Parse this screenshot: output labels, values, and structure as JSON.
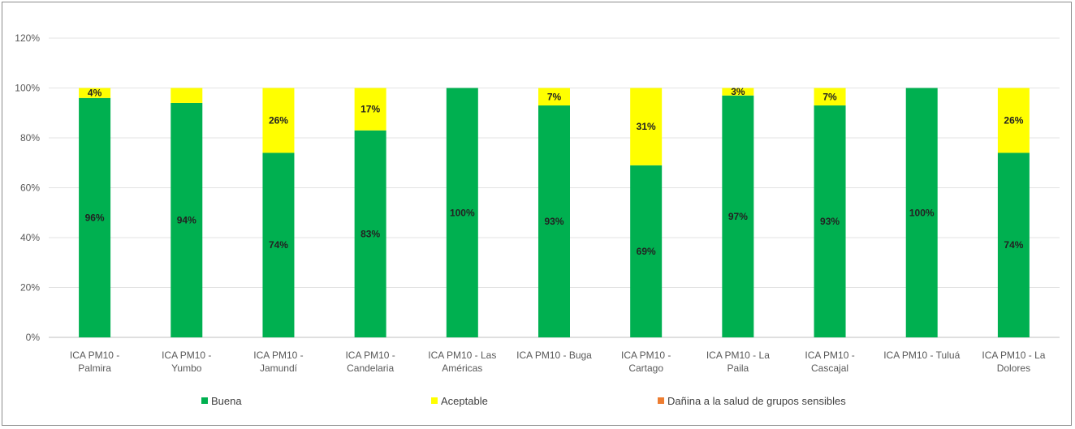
{
  "chart_data": {
    "type": "bar",
    "stacked": true,
    "categories": [
      [
        "ICA PM10 -",
        "Palmira"
      ],
      [
        "ICA PM10 -",
        "Yumbo"
      ],
      [
        "ICA PM10 -",
        "Jamundí"
      ],
      [
        "ICA PM10 -",
        "Candelaria"
      ],
      [
        "ICA PM10 - Las",
        "Américas"
      ],
      [
        "ICA PM10 - Buga"
      ],
      [
        "ICA PM10 -",
        "Cartago"
      ],
      [
        "ICA PM10 - La",
        "Paila"
      ],
      [
        "ICA PM10 -",
        "Cascajal"
      ],
      [
        "ICA PM10 - Tuluá"
      ],
      [
        "ICA PM10 - La",
        "Dolores"
      ]
    ],
    "series": [
      {
        "name": "Buena",
        "color": "#00b050",
        "values": [
          96,
          94,
          74,
          83,
          100,
          93,
          69,
          97,
          93,
          100,
          74
        ],
        "labels": [
          "96%",
          "94%",
          "74%",
          "83%",
          "100%",
          "93%",
          "69%",
          "97%",
          "93%",
          "100%",
          "74%"
        ]
      },
      {
        "name": "Aceptable",
        "color": "#ffff00",
        "values": [
          4,
          6,
          26,
          17,
          0,
          7,
          31,
          3,
          7,
          0,
          26
        ],
        "labels": [
          "4%",
          "",
          "26%",
          "17%",
          "",
          "7%",
          "31%",
          "3%",
          "7%",
          "",
          "26%"
        ]
      },
      {
        "name": "Dañina a la salud de grupos sensibles",
        "color": "#ed7d31",
        "values": [
          0,
          0,
          0,
          0,
          0,
          0,
          0,
          0,
          0,
          0,
          0
        ],
        "labels": [
          "",
          "",
          "",
          "",
          "",
          "",
          "",
          "",
          "",
          "",
          ""
        ]
      }
    ],
    "yticks": [
      "0%",
      "20%",
      "40%",
      "60%",
      "80%",
      "100%",
      "120%"
    ],
    "ylim": [
      0,
      120
    ],
    "grid": true,
    "legend_position": "bottom",
    "title": "",
    "xlabel": "",
    "ylabel": ""
  }
}
